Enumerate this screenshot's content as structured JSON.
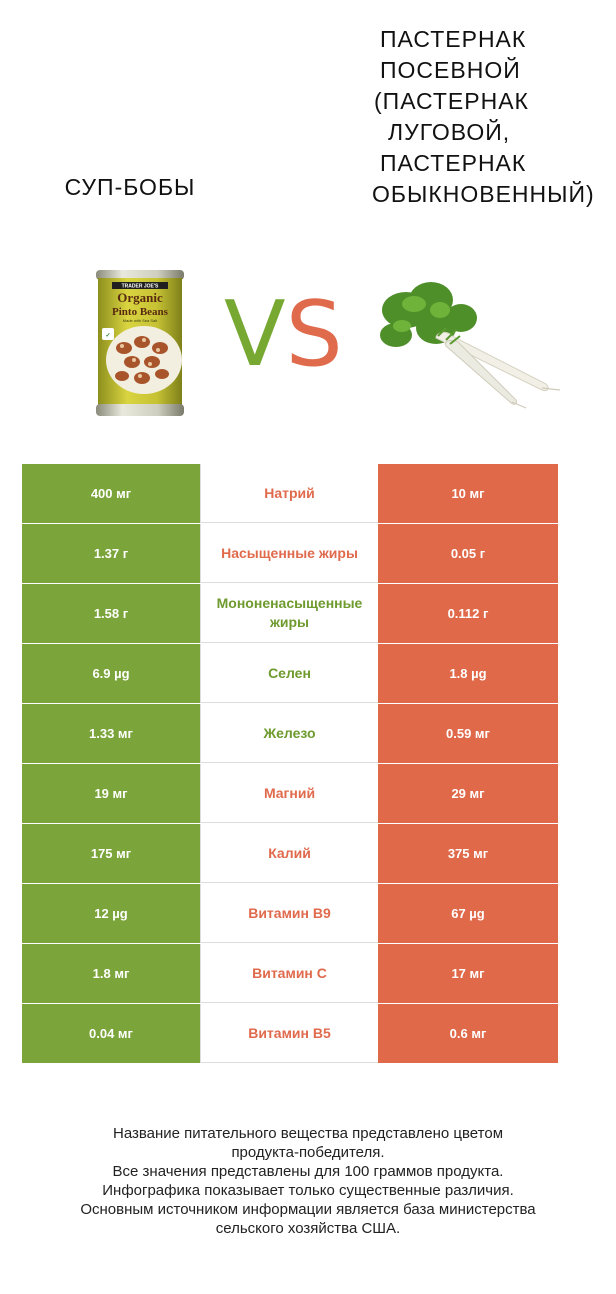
{
  "left_title": "СУП-БОБЫ",
  "right_title_lines": [
    "ПАСТЕРНАК",
    "ПОСЕВНОЙ",
    "(ПАСТЕРНАК",
    "ЛУГОВОЙ,",
    "ПАСТЕРНАК",
    "ОБЫКНОВЕННЫЙ)"
  ],
  "vs_v": "V",
  "vs_s": "S",
  "can_label": {
    "brand": "TRADER JOE'S",
    "line1": "Organic",
    "line2": "Pinto Beans",
    "line3": "Made with Sea Salt"
  },
  "colors": {
    "winner_left": "#7ba53a",
    "winner_right": "#e0694a"
  },
  "rows": [
    {
      "left": "400 мг",
      "nutrient": "Натрий",
      "right": "10 мг",
      "winner": "right"
    },
    {
      "left": "1.37 г",
      "nutrient": "Насыщенные жиры",
      "right": "0.05 г",
      "winner": "right"
    },
    {
      "left": "1.58 г",
      "nutrient": "Мононенасыщенные жиры",
      "right": "0.112 г",
      "winner": "left"
    },
    {
      "left": "6.9 µg",
      "nutrient": "Селен",
      "right": "1.8 µg",
      "winner": "left"
    },
    {
      "left": "1.33 мг",
      "nutrient": "Железо",
      "right": "0.59 мг",
      "winner": "left"
    },
    {
      "left": "19 мг",
      "nutrient": "Магний",
      "right": "29 мг",
      "winner": "right"
    },
    {
      "left": "175 мг",
      "nutrient": "Калий",
      "right": "375 мг",
      "winner": "right"
    },
    {
      "left": "12 µg",
      "nutrient": "Витамин B9",
      "right": "67 µg",
      "winner": "right"
    },
    {
      "left": "1.8 мг",
      "nutrient": "Витамин C",
      "right": "17 мг",
      "winner": "right"
    },
    {
      "left": "0.04 мг",
      "nutrient": "Витамин B5",
      "right": "0.6 мг",
      "winner": "right"
    }
  ],
  "footer_lines": [
    "Название питательного вещества представлено цветом",
    "продукта-победителя.",
    "Все значения представлены для 100 граммов продукта.",
    "Инфографика показывает только существенные различия.",
    "Основным источником информации является база министерства",
    "сельского хозяйства США."
  ]
}
